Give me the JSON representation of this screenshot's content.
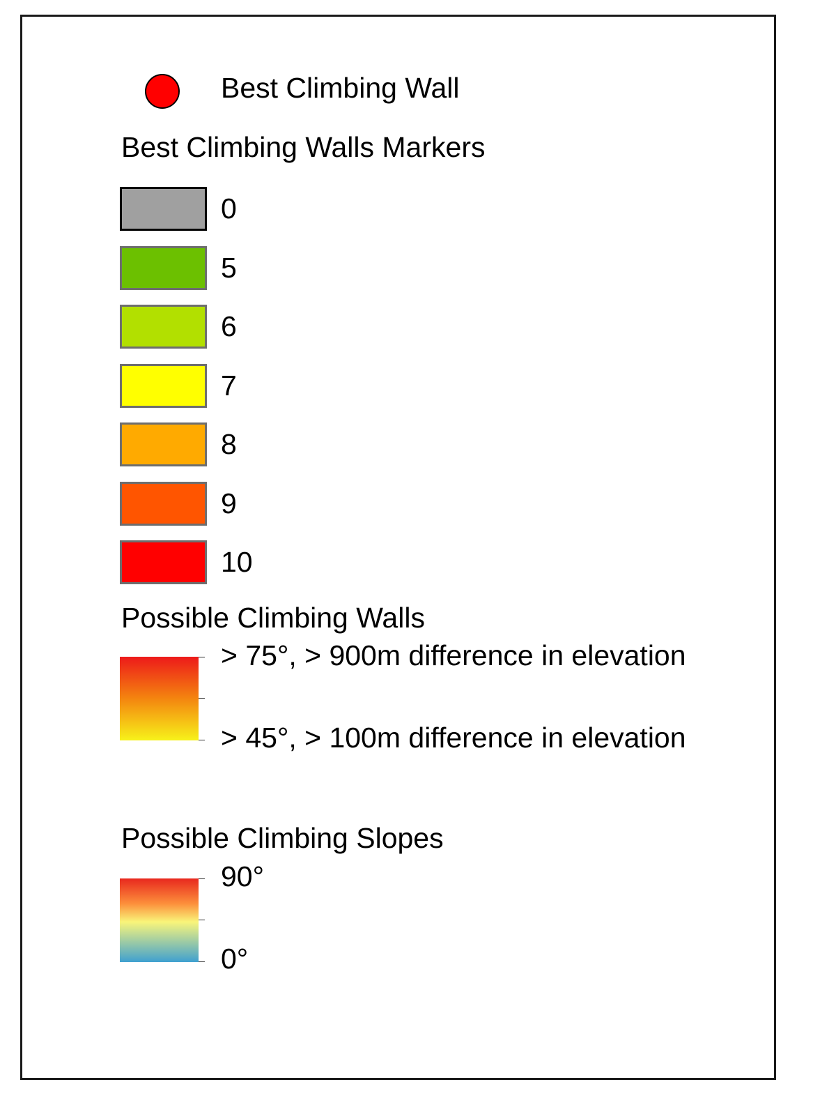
{
  "best_wall": {
    "label": "Best Climbing Wall",
    "marker_color": "#ff0000",
    "marker_shape": "circle"
  },
  "markers": {
    "title": "Best Climbing Walls Markers",
    "classes": [
      {
        "label": "0",
        "color": "#a0a0a0"
      },
      {
        "label": "5",
        "color": "#6cc000"
      },
      {
        "label": "6",
        "color": "#b2e000"
      },
      {
        "label": "7",
        "color": "#ffff00"
      },
      {
        "label": "8",
        "color": "#ffaa00"
      },
      {
        "label": "9",
        "color": "#ff5500"
      },
      {
        "label": "10",
        "color": "#ff0000"
      }
    ]
  },
  "walls": {
    "title": "Possible Climbing Walls",
    "high_label": "> 75°, > 900m difference in elevation",
    "low_label": "> 45°, > 100m difference in elevation",
    "ramp_colors": [
      "#ed1a1a",
      "#f4850f",
      "#f7f21a"
    ]
  },
  "slopes": {
    "title": "Possible Climbing Slopes",
    "high_label": "90°",
    "low_label": "0°",
    "ramp_colors": [
      "#e8281e",
      "#fc8f3b",
      "#f9f57a",
      "#3fa0d0"
    ]
  }
}
